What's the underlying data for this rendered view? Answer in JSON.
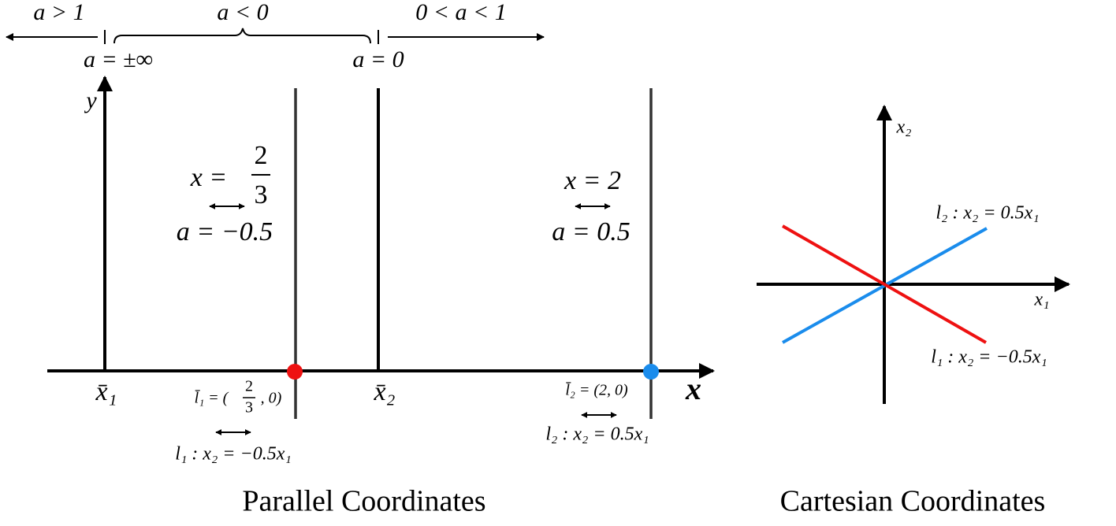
{
  "parallel": {
    "regions": [
      "a > 1",
      "a < 0",
      "0 < a < 1"
    ],
    "markers": [
      "a = ±∞",
      "a = 0"
    ],
    "y_axis_label": "y",
    "x_axis_label": "x",
    "axis_labels": [
      "x̄₁",
      "x̄₂"
    ],
    "lines": [
      {
        "x_label": "x =",
        "x_num": "2",
        "x_den": "3",
        "a_label": "a = −0.5",
        "point_prefix": "l̄₁ = (",
        "point_num": "2",
        "point_den": "3",
        "point_suffix": ", 0)",
        "equation": "l₁ : x₂ = −0.5x₁",
        "color": "#ee1111"
      },
      {
        "x_label": "x = 2",
        "a_label": "a = 0.5",
        "point_label": "l̄₂ = (2, 0)",
        "equation": "l₂ : x₂ = 0.5x₁",
        "color": "#1a8cec"
      }
    ],
    "caption": "Parallel Coordinates"
  },
  "cartesian": {
    "x_label": "x₁",
    "y_label": "x₂",
    "lines": [
      {
        "label": "l₂ : x₂ = 0.5x₁",
        "color": "#1a8cec"
      },
      {
        "label": "l₁ : x₂ = −0.5x₁",
        "color": "#ee1111"
      }
    ],
    "caption": "Cartesian Coordinates"
  }
}
